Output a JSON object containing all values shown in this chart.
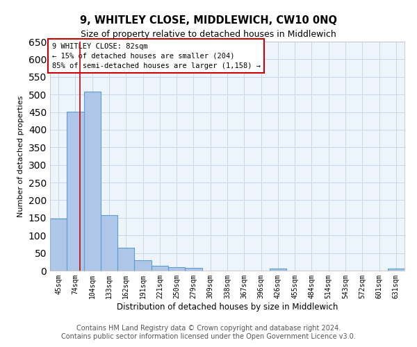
{
  "title": "9, WHITLEY CLOSE, MIDDLEWICH, CW10 0NQ",
  "subtitle": "Size of property relative to detached houses in Middlewich",
  "xlabel": "Distribution of detached houses by size in Middlewich",
  "ylabel": "Number of detached properties",
  "categories": [
    "45sqm",
    "74sqm",
    "104sqm",
    "133sqm",
    "162sqm",
    "191sqm",
    "221sqm",
    "250sqm",
    "279sqm",
    "309sqm",
    "338sqm",
    "367sqm",
    "396sqm",
    "426sqm",
    "455sqm",
    "484sqm",
    "514sqm",
    "543sqm",
    "572sqm",
    "601sqm",
    "631sqm"
  ],
  "values": [
    148,
    451,
    508,
    158,
    65,
    30,
    13,
    10,
    7,
    0,
    0,
    0,
    0,
    5,
    0,
    0,
    0,
    0,
    0,
    0,
    5
  ],
  "bar_color": "#aec6e8",
  "bar_edgecolor": "#5a9fd4",
  "bar_linewidth": 0.8,
  "ylim": [
    0,
    650
  ],
  "yticks": [
    0,
    50,
    100,
    150,
    200,
    250,
    300,
    350,
    400,
    450,
    500,
    550,
    600,
    650
  ],
  "redline_x": 1.27,
  "annotation_text": "9 WHITLEY CLOSE: 82sqm\n← 15% of detached houses are smaller (204)\n85% of semi-detached houses are larger (1,158) →",
  "annotation_fontsize": 7.5,
  "annotation_box_color": "#ffffff",
  "annotation_box_edgecolor": "#cc0000",
  "grid_color": "#c8d8e8",
  "background_color": "#eef4fb",
  "footer_line1": "Contains HM Land Registry data © Crown copyright and database right 2024.",
  "footer_line2": "Contains public sector information licensed under the Open Government Licence v3.0.",
  "title_fontsize": 10.5,
  "subtitle_fontsize": 9,
  "footer_fontsize": 7,
  "xlabel_fontsize": 8.5,
  "ylabel_fontsize": 8
}
